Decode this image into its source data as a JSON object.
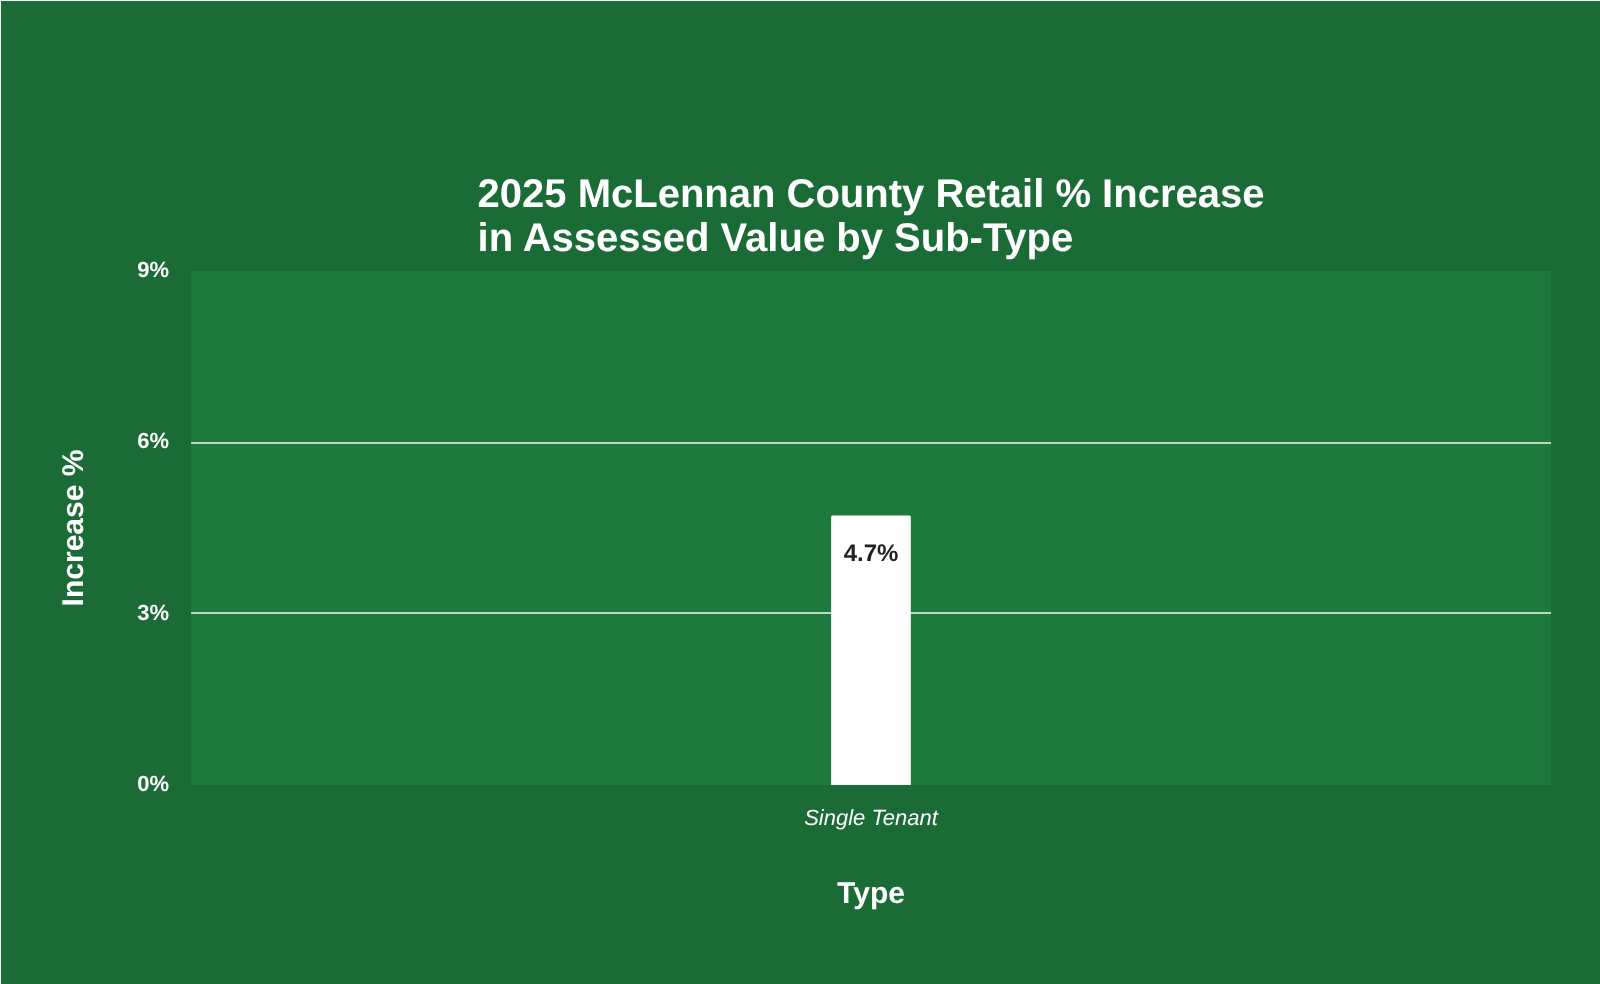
{
  "chart_data": {
    "type": "bar",
    "title": "2025 McLennan County Retail % Increase\nin Assessed Value by Sub-Type",
    "xlabel": "Type",
    "ylabel": "Increase %",
    "categories": [
      "Single Tenant"
    ],
    "values": [
      4.7
    ],
    "value_labels": [
      "4.7%"
    ],
    "color": "#ffffff",
    "ylim": [
      0,
      9
    ],
    "yticks": [
      {
        "value": 0,
        "label": "0%"
      },
      {
        "value": 3,
        "label": "3%"
      },
      {
        "value": 6,
        "label": "6%"
      },
      {
        "value": 9,
        "label": "9%"
      }
    ],
    "grid": "y"
  }
}
